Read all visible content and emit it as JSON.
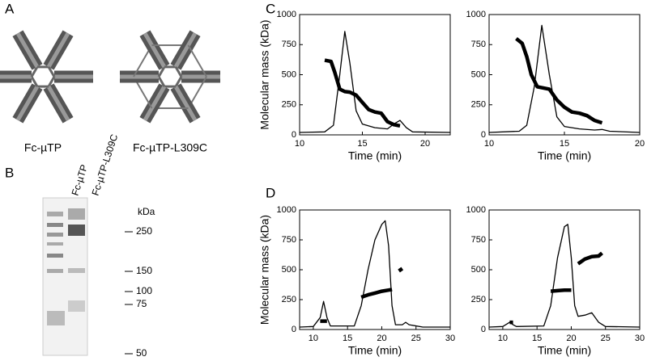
{
  "panel_labels": [
    "A",
    "B",
    "C",
    "D"
  ],
  "panel_a": {
    "labels": [
      "Fc-µTP",
      "Fc-µTP-L309C"
    ]
  },
  "panel_b": {
    "lanes": [
      "Fc-µTP",
      "Fc-µTP-L309C"
    ],
    "unit": "kDa",
    "markers": [
      250,
      150,
      100,
      75,
      50
    ]
  },
  "chart_data": [
    {
      "type": "line",
      "ylabel": "Molecular mass (kDa)",
      "xlabel": "Time (min)",
      "xlim": [
        10,
        22
      ],
      "xticks": [
        10,
        15,
        20
      ],
      "ylim": [
        0,
        1000
      ],
      "yticks": [
        0,
        250,
        500,
        750,
        1000
      ],
      "series": [
        {
          "color": "#000000",
          "x": [
            10,
            12,
            12.7,
            13.2,
            13.6,
            14,
            14.5,
            15,
            16,
            17,
            17.5,
            18,
            18.5,
            19,
            22
          ],
          "values": [
            20,
            25,
            80,
            500,
            860,
            600,
            200,
            90,
            60,
            50,
            90,
            120,
            60,
            25,
            20
          ]
        },
        {
          "color": "#000000",
          "x": [
            12,
            12.5,
            12.8,
            13.2,
            13.6,
            14,
            14.5,
            15,
            15.5,
            16,
            16.5,
            17,
            17.5,
            18
          ],
          "values": [
            620,
            610,
            520,
            380,
            360,
            355,
            330,
            270,
            210,
            190,
            180,
            110,
            85,
            75
          ]
        }
      ]
    },
    {
      "type": "line",
      "xlabel": "Time (min)",
      "xlim": [
        10,
        20
      ],
      "xticks": [
        10,
        15,
        20
      ],
      "ylim": [
        0,
        1000
      ],
      "yticks": [
        0,
        250,
        500,
        750,
        1000
      ],
      "series": [
        {
          "color": "#000000",
          "x": [
            10,
            12,
            12.5,
            13,
            13.5,
            14,
            14.5,
            15,
            16,
            17,
            17.5,
            18,
            20
          ],
          "values": [
            20,
            30,
            80,
            400,
            910,
            500,
            150,
            70,
            50,
            40,
            45,
            30,
            20
          ]
        },
        {
          "color": "#000000",
          "x": [
            11.8,
            12.2,
            12.5,
            12.8,
            13.2,
            13.6,
            14,
            14.5,
            15,
            15.5,
            16,
            16.5,
            17,
            17.5
          ],
          "values": [
            800,
            760,
            650,
            500,
            400,
            390,
            380,
            290,
            230,
            190,
            180,
            160,
            120,
            100
          ]
        }
      ]
    },
    {
      "type": "line",
      "ylabel": "Molecular mass (kDa)",
      "xlabel": "Time (min)",
      "xlim": [
        8,
        30
      ],
      "xticks": [
        10,
        15,
        20,
        25,
        30
      ],
      "ylim": [
        0,
        1000
      ],
      "yticks": [
        0,
        250,
        500,
        750,
        1000
      ],
      "series": [
        {
          "color": "#000000",
          "x": [
            8,
            10,
            11,
            11.5,
            12,
            12.5,
            16,
            17,
            18,
            19,
            20,
            20.5,
            21,
            21.5,
            22,
            23,
            23.5,
            24,
            26,
            30
          ],
          "values": [
            20,
            25,
            100,
            235,
            100,
            30,
            30,
            200,
            500,
            750,
            880,
            910,
            700,
            200,
            40,
            40,
            60,
            40,
            20,
            20
          ]
        },
        {
          "color": "#000000",
          "x": [
            11,
            12,
            12.5,
            17,
            18,
            19,
            20,
            21,
            21.5,
            22,
            22.5,
            23
          ],
          "values": [
            70,
            70,
            null,
            270,
            290,
            305,
            320,
            330,
            335,
            null,
            490,
            510
          ]
        }
      ]
    },
    {
      "type": "line",
      "xlabel": "Time (min)",
      "xlim": [
        8,
        30
      ],
      "xticks": [
        10,
        15,
        20,
        25,
        30
      ],
      "ylim": [
        0,
        1000
      ],
      "yticks": [
        0,
        250,
        500,
        750,
        1000
      ],
      "series": [
        {
          "color": "#000000",
          "x": [
            8,
            10,
            11,
            11.5,
            12,
            16,
            17,
            18,
            19,
            19.5,
            20,
            20.5,
            21,
            22,
            23,
            24,
            25,
            30
          ],
          "values": [
            20,
            25,
            60,
            40,
            25,
            30,
            200,
            600,
            860,
            880,
            600,
            200,
            110,
            120,
            140,
            60,
            25,
            20
          ]
        },
        {
          "color": "#000000",
          "x": [
            11,
            11.5,
            12,
            17,
            18,
            19,
            20,
            20.5,
            21,
            22,
            23,
            24,
            24.5
          ],
          "values": [
            60,
            60,
            null,
            320,
            325,
            330,
            330,
            null,
            550,
            590,
            610,
            615,
            640
          ]
        }
      ]
    }
  ]
}
